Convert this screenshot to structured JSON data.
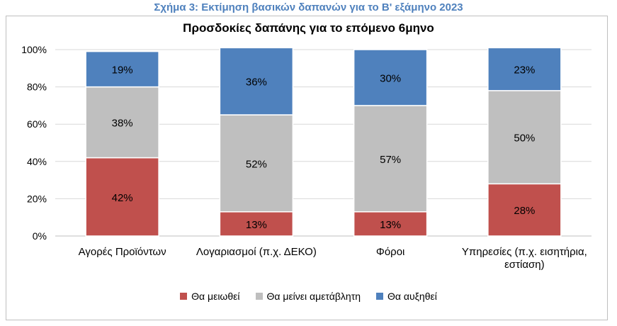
{
  "figure_caption": "Σχήμα 3: Εκτίμηση βασικών δαπανών για το Β' εξάμηνο 2023",
  "chart_data": {
    "type": "bar",
    "stacked": true,
    "title": "Προσδοκίες δαπάνης για το επόμενο 6μηνο",
    "categories": [
      [
        "Αγορές Προϊόντων"
      ],
      [
        "Λογαριασμοί (π.χ. ΔΕΚΟ)"
      ],
      [
        "Φόροι"
      ],
      [
        "Υπηρεσίες (π.χ. εισητήρια,",
        "εστίαση)"
      ]
    ],
    "ylim": [
      0,
      100
    ],
    "yticks": [
      0,
      20,
      40,
      60,
      80,
      100
    ],
    "ytick_labels": [
      "0%",
      "20%",
      "40%",
      "60%",
      "80%",
      "100%"
    ],
    "grid": true,
    "legend_position": "bottom",
    "series": [
      {
        "name": "Θα μειωθεί",
        "color": "#c0504d",
        "values": [
          42,
          13,
          13,
          28
        ],
        "labels": [
          "42%",
          "13%",
          "13%",
          "28%"
        ]
      },
      {
        "name": "Θα μείνει αμετάβλητη",
        "color": "#bfbfbf",
        "values": [
          38,
          52,
          57,
          50
        ],
        "labels": [
          "38%",
          "52%",
          "57%",
          "50%"
        ]
      },
      {
        "name": "Θα αυξηθεί",
        "color": "#4f81bd",
        "values": [
          19,
          36,
          30,
          23
        ],
        "labels": [
          "19%",
          "36%",
          "30%",
          "23%"
        ]
      }
    ]
  }
}
